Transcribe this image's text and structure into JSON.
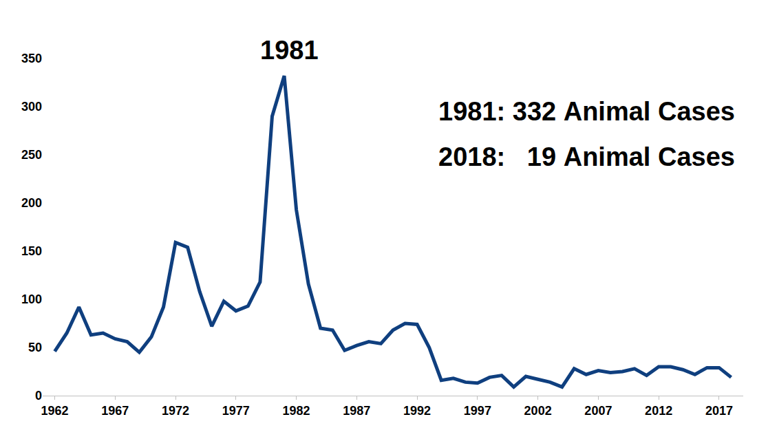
{
  "chart_data": {
    "type": "line",
    "annotations": [
      "1981",
      "1981: 332 Animal Cases",
      "2018:   19 Animal Cases"
    ],
    "x": [
      1962,
      1963,
      1964,
      1965,
      1966,
      1967,
      1968,
      1969,
      1970,
      1971,
      1972,
      1973,
      1974,
      1975,
      1976,
      1977,
      1978,
      1979,
      1980,
      1981,
      1982,
      1983,
      1984,
      1985,
      1986,
      1987,
      1988,
      1989,
      1990,
      1991,
      1992,
      1993,
      1994,
      1995,
      1996,
      1997,
      1998,
      1999,
      2000,
      2001,
      2002,
      2003,
      2004,
      2005,
      2006,
      2007,
      2008,
      2009,
      2010,
      2011,
      2012,
      2013,
      2014,
      2015,
      2016,
      2017,
      2018
    ],
    "values": [
      46,
      65,
      92,
      63,
      65,
      59,
      56,
      45,
      61,
      92,
      159,
      154,
      108,
      72,
      98,
      88,
      93,
      118,
      290,
      332,
      193,
      116,
      70,
      68,
      47,
      52,
      56,
      54,
      68,
      75,
      74,
      50,
      16,
      18,
      14,
      13,
      19,
      21,
      9,
      20,
      17,
      14,
      9,
      28,
      22,
      26,
      24,
      25,
      28,
      21,
      30,
      30,
      27,
      22,
      29,
      29,
      19
    ],
    "color": "#0f3f7f",
    "xlim": [
      1961,
      2019
    ],
    "xticks": [
      1962,
      1967,
      1972,
      1977,
      1982,
      1987,
      1992,
      1997,
      2002,
      2007,
      2012,
      2017
    ],
    "ylim": [
      0,
      350
    ],
    "yticks": [
      0,
      50,
      100,
      150,
      200,
      250,
      300,
      350
    ],
    "grid": false
  }
}
